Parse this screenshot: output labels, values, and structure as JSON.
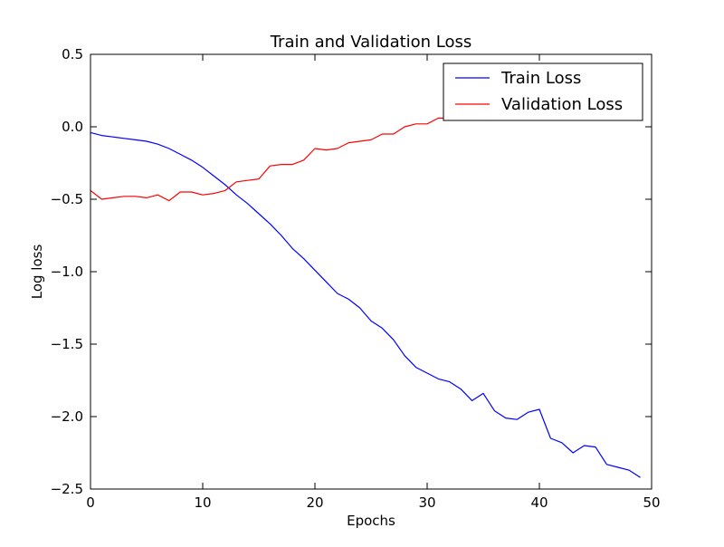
{
  "chart_data": {
    "type": "line",
    "title": "Train and Validation Loss",
    "xlabel": "Epochs",
    "ylabel": "Log loss",
    "xlim": [
      0,
      50
    ],
    "ylim": [
      -2.5,
      0.5
    ],
    "x_ticks": [
      0,
      10,
      20,
      30,
      40,
      50
    ],
    "x_tick_labels": [
      "0",
      "10",
      "20",
      "30",
      "40",
      "50"
    ],
    "y_ticks": [
      0.5,
      0.0,
      -0.5,
      -1.0,
      -1.5,
      -2.0,
      -2.5
    ],
    "y_tick_labels": [
      "0.5",
      "0.0",
      "−0.5",
      "−1.0",
      "−1.5",
      "−2.0",
      "−2.5"
    ],
    "grid": false,
    "legend_position": "top-right",
    "x": [
      0,
      1,
      2,
      3,
      4,
      5,
      6,
      7,
      8,
      9,
      10,
      11,
      12,
      13,
      14,
      15,
      16,
      17,
      18,
      19,
      20,
      21,
      22,
      23,
      24,
      25,
      26,
      27,
      28,
      29,
      30,
      31,
      32,
      33,
      34,
      35,
      36,
      37,
      38,
      39,
      40,
      41,
      42,
      43,
      44,
      45,
      46,
      47,
      48,
      49
    ],
    "series": [
      {
        "name": "Train Loss",
        "color": "#0000ff",
        "values": [
          -0.04,
          -0.06,
          -0.07,
          -0.08,
          -0.09,
          -0.1,
          -0.12,
          -0.15,
          -0.19,
          -0.23,
          -0.28,
          -0.34,
          -0.4,
          -0.47,
          -0.53,
          -0.6,
          -0.67,
          -0.75,
          -0.84,
          -0.91,
          -0.99,
          -1.07,
          -1.15,
          -1.19,
          -1.25,
          -1.34,
          -1.39,
          -1.47,
          -1.58,
          -1.66,
          -1.7,
          -1.74,
          -1.76,
          -1.81,
          -1.89,
          -1.84,
          -1.96,
          -2.01,
          -2.02,
          -1.97,
          -1.95,
          -2.15,
          -2.18,
          -2.25,
          -2.2,
          -2.21,
          -2.33,
          -2.35,
          -2.37,
          -2.42
        ]
      },
      {
        "name": "Validation Loss",
        "color": "#ff0000",
        "values": [
          -0.44,
          -0.5,
          -0.49,
          -0.48,
          -0.48,
          -0.49,
          -0.47,
          -0.51,
          -0.45,
          -0.45,
          -0.47,
          -0.46,
          -0.44,
          -0.38,
          -0.37,
          -0.36,
          -0.27,
          -0.26,
          -0.26,
          -0.23,
          -0.15,
          -0.16,
          -0.15,
          -0.11,
          -0.1,
          -0.09,
          -0.05,
          -0.05,
          0.0,
          0.02,
          0.02,
          0.06,
          0.06,
          0.08,
          0.1,
          0.11,
          0.12,
          0.14,
          0.15,
          0.17,
          0.19,
          0.21,
          0.22,
          0.24,
          0.25,
          0.26,
          0.28,
          0.29,
          0.3,
          0.31
        ]
      }
    ]
  }
}
